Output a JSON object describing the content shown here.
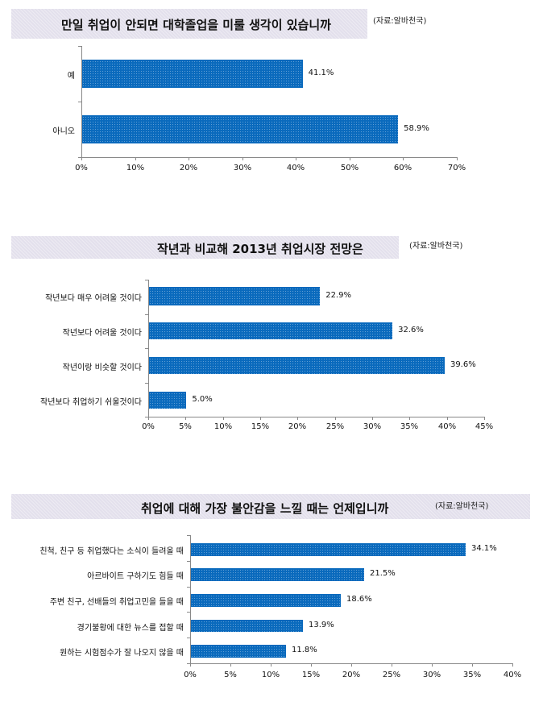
{
  "chart_data": [
    {
      "type": "bar",
      "orientation": "horizontal",
      "title": "만일 취업이 안되면 대학졸업을 미룰 생각이 있습니까",
      "source": "(자료:알바천국)",
      "categories": [
        "예",
        "아니오"
      ],
      "values": [
        41.1,
        58.9
      ],
      "value_labels": [
        "41.1%",
        "58.9%"
      ],
      "xlim": [
        0,
        70
      ],
      "ticks": [
        "0%",
        "10%",
        "20%",
        "30%",
        "40%",
        "50%",
        "60%",
        "70%"
      ],
      "color": "#0a6abd",
      "grid": false
    },
    {
      "type": "bar",
      "orientation": "horizontal",
      "title": "작년과 비교해 2013년 취업시장 전망은",
      "source": "(자료:알바천국)",
      "categories": [
        "작년보다 매우 어려울 것이다",
        "작년보다 어려울 것이다",
        "작년이랑 비슷할 것이다",
        "작년보다 취업하기 쉬울것이다"
      ],
      "values": [
        22.9,
        32.6,
        39.6,
        5.0
      ],
      "value_labels": [
        "22.9%",
        "32.6%",
        "39.6%",
        "5.0%"
      ],
      "xlim": [
        0,
        45
      ],
      "ticks": [
        "0%",
        "5%",
        "10%",
        "15%",
        "20%",
        "25%",
        "30%",
        "35%",
        "40%",
        "45%"
      ],
      "color": "#0a6abd",
      "grid": false
    },
    {
      "type": "bar",
      "orientation": "horizontal",
      "title": "취업에 대해 가장 불안감을 느낄 때는 언제입니까",
      "source": "(자료:알바천국)",
      "categories": [
        "친척, 친구 등 취업했다는 소식이 들려올 때",
        "아르바이트 구하기도 힘들 때",
        "주변 친구, 선배들의 취업고민을 들을 때",
        "경기불황에 대한 뉴스를 접할 때",
        "원하는 시험점수가 잘 나오지 않을 때"
      ],
      "values": [
        34.1,
        21.5,
        18.6,
        13.9,
        11.8
      ],
      "value_labels": [
        "34.1%",
        "21.5%",
        "18.6%",
        "13.9%",
        "11.8%"
      ],
      "xlim": [
        0,
        40
      ],
      "ticks": [
        "0%",
        "5%",
        "10%",
        "15%",
        "20%",
        "25%",
        "30%",
        "35%",
        "40%"
      ],
      "color": "#0a6abd",
      "grid": false
    }
  ]
}
